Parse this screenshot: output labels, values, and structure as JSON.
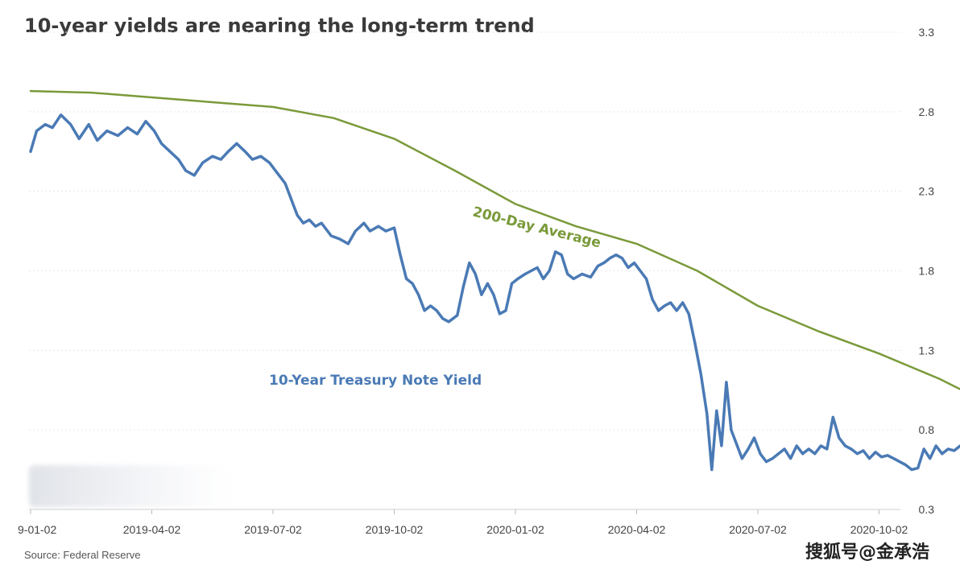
{
  "chart_data": {
    "type": "line",
    "title": "10-year yields are nearing the long-term trend",
    "source": "Source: Federal Reserve",
    "x_ticks": [
      "9-01-02",
      "2019-04-02",
      "2019-07-02",
      "2019-10-02",
      "2020-01-02",
      "2020-04-02",
      "2020-07-02",
      "2020-10-02"
    ],
    "y_ticks": [
      3.3,
      2.8,
      2.3,
      1.8,
      1.3,
      0.8,
      0.3
    ],
    "ylim": [
      0.3,
      3.3
    ],
    "grid": true,
    "y_axis_side": "right",
    "annotations": {
      "yield_label": "10-Year Treasury Note Yield",
      "average_label": "200-Day Average"
    },
    "series": [
      {
        "name": "10-Year Treasury Note Yield",
        "color": "#4a7ab5",
        "values": [
          [
            0.0,
            2.55
          ],
          [
            0.05,
            2.68
          ],
          [
            0.12,
            2.72
          ],
          [
            0.18,
            2.7
          ],
          [
            0.25,
            2.78
          ],
          [
            0.33,
            2.72
          ],
          [
            0.4,
            2.63
          ],
          [
            0.48,
            2.72
          ],
          [
            0.55,
            2.62
          ],
          [
            0.63,
            2.68
          ],
          [
            0.72,
            2.65
          ],
          [
            0.8,
            2.7
          ],
          [
            0.88,
            2.66
          ],
          [
            0.95,
            2.74
          ],
          [
            1.02,
            2.68
          ],
          [
            1.08,
            2.6
          ],
          [
            1.15,
            2.55
          ],
          [
            1.22,
            2.5
          ],
          [
            1.28,
            2.43
          ],
          [
            1.35,
            2.4
          ],
          [
            1.42,
            2.48
          ],
          [
            1.5,
            2.52
          ],
          [
            1.57,
            2.5
          ],
          [
            1.63,
            2.55
          ],
          [
            1.7,
            2.6
          ],
          [
            1.77,
            2.55
          ],
          [
            1.83,
            2.5
          ],
          [
            1.9,
            2.52
          ],
          [
            1.97,
            2.48
          ],
          [
            2.03,
            2.42
          ],
          [
            2.1,
            2.35
          ],
          [
            2.15,
            2.25
          ],
          [
            2.2,
            2.15
          ],
          [
            2.25,
            2.1
          ],
          [
            2.3,
            2.12
          ],
          [
            2.35,
            2.08
          ],
          [
            2.4,
            2.1
          ],
          [
            2.48,
            2.02
          ],
          [
            2.55,
            2.0
          ],
          [
            2.62,
            1.97
          ],
          [
            2.68,
            2.05
          ],
          [
            2.75,
            2.1
          ],
          [
            2.8,
            2.05
          ],
          [
            2.87,
            2.08
          ],
          [
            2.93,
            2.05
          ],
          [
            3.0,
            2.07
          ],
          [
            3.05,
            1.9
          ],
          [
            3.1,
            1.75
          ],
          [
            3.15,
            1.72
          ],
          [
            3.2,
            1.65
          ],
          [
            3.25,
            1.55
          ],
          [
            3.3,
            1.58
          ],
          [
            3.35,
            1.55
          ],
          [
            3.4,
            1.5
          ],
          [
            3.45,
            1.48
          ],
          [
            3.52,
            1.52
          ],
          [
            3.57,
            1.7
          ],
          [
            3.62,
            1.85
          ],
          [
            3.67,
            1.78
          ],
          [
            3.72,
            1.65
          ],
          [
            3.77,
            1.72
          ],
          [
            3.82,
            1.65
          ],
          [
            3.87,
            1.53
          ],
          [
            3.92,
            1.55
          ],
          [
            3.97,
            1.72
          ],
          [
            4.02,
            1.75
          ],
          [
            4.08,
            1.78
          ],
          [
            4.13,
            1.8
          ],
          [
            4.18,
            1.82
          ],
          [
            4.23,
            1.75
          ],
          [
            4.28,
            1.8
          ],
          [
            4.33,
            1.92
          ],
          [
            4.38,
            1.9
          ],
          [
            4.43,
            1.78
          ],
          [
            4.48,
            1.75
          ],
          [
            4.55,
            1.78
          ],
          [
            4.62,
            1.76
          ],
          [
            4.68,
            1.83
          ],
          [
            4.73,
            1.85
          ],
          [
            4.78,
            1.88
          ],
          [
            4.83,
            1.9
          ],
          [
            4.88,
            1.88
          ],
          [
            4.93,
            1.82
          ],
          [
            4.98,
            1.85
          ],
          [
            5.03,
            1.8
          ],
          [
            5.08,
            1.75
          ],
          [
            5.13,
            1.62
          ],
          [
            5.18,
            1.55
          ],
          [
            5.23,
            1.58
          ],
          [
            5.28,
            1.6
          ],
          [
            5.33,
            1.55
          ],
          [
            5.38,
            1.6
          ],
          [
            5.43,
            1.53
          ],
          [
            5.48,
            1.35
          ],
          [
            5.53,
            1.15
          ],
          [
            5.58,
            0.9
          ],
          [
            5.62,
            0.55
          ],
          [
            5.66,
            0.92
          ],
          [
            5.7,
            0.7
          ],
          [
            5.74,
            1.1
          ],
          [
            5.78,
            0.8
          ],
          [
            5.82,
            0.72
          ],
          [
            5.87,
            0.62
          ],
          [
            5.92,
            0.68
          ],
          [
            5.97,
            0.75
          ],
          [
            6.02,
            0.65
          ],
          [
            6.07,
            0.6
          ],
          [
            6.12,
            0.62
          ],
          [
            6.17,
            0.65
          ],
          [
            6.22,
            0.68
          ],
          [
            6.27,
            0.62
          ],
          [
            6.32,
            0.7
          ],
          [
            6.37,
            0.65
          ],
          [
            6.42,
            0.68
          ],
          [
            6.47,
            0.65
          ],
          [
            6.52,
            0.7
          ],
          [
            6.57,
            0.68
          ],
          [
            6.62,
            0.88
          ],
          [
            6.67,
            0.75
          ],
          [
            6.72,
            0.7
          ],
          [
            6.77,
            0.68
          ],
          [
            6.82,
            0.65
          ],
          [
            6.87,
            0.67
          ],
          [
            6.92,
            0.62
          ],
          [
            6.97,
            0.66
          ],
          [
            7.02,
            0.63
          ],
          [
            7.07,
            0.64
          ],
          [
            7.12,
            0.62
          ],
          [
            7.17,
            0.6
          ],
          [
            7.22,
            0.58
          ],
          [
            7.27,
            0.55
          ],
          [
            7.32,
            0.56
          ],
          [
            7.37,
            0.68
          ],
          [
            7.42,
            0.62
          ],
          [
            7.47,
            0.7
          ],
          [
            7.52,
            0.65
          ],
          [
            7.57,
            0.68
          ],
          [
            7.62,
            0.67
          ],
          [
            7.67,
            0.7
          ],
          [
            7.72,
            0.68
          ],
          [
            7.77,
            0.66
          ],
          [
            7.82,
            0.69
          ],
          [
            7.87,
            0.78
          ],
          [
            7.92,
            0.75
          ],
          [
            7.97,
            0.73
          ],
          [
            8.02,
            0.77
          ],
          [
            8.06,
            0.82
          ]
        ]
      },
      {
        "name": "200-Day Average",
        "color": "#7a9a3a",
        "values": [
          [
            0.0,
            2.93
          ],
          [
            0.5,
            2.92
          ],
          [
            1.0,
            2.89
          ],
          [
            1.5,
            2.86
          ],
          [
            2.0,
            2.83
          ],
          [
            2.5,
            2.76
          ],
          [
            3.0,
            2.63
          ],
          [
            3.5,
            2.43
          ],
          [
            4.0,
            2.22
          ],
          [
            4.5,
            2.08
          ],
          [
            5.0,
            1.97
          ],
          [
            5.5,
            1.8
          ],
          [
            6.0,
            1.58
          ],
          [
            6.5,
            1.42
          ],
          [
            7.0,
            1.28
          ],
          [
            7.5,
            1.12
          ],
          [
            8.0,
            0.93
          ],
          [
            8.06,
            0.87
          ]
        ]
      }
    ]
  }
}
